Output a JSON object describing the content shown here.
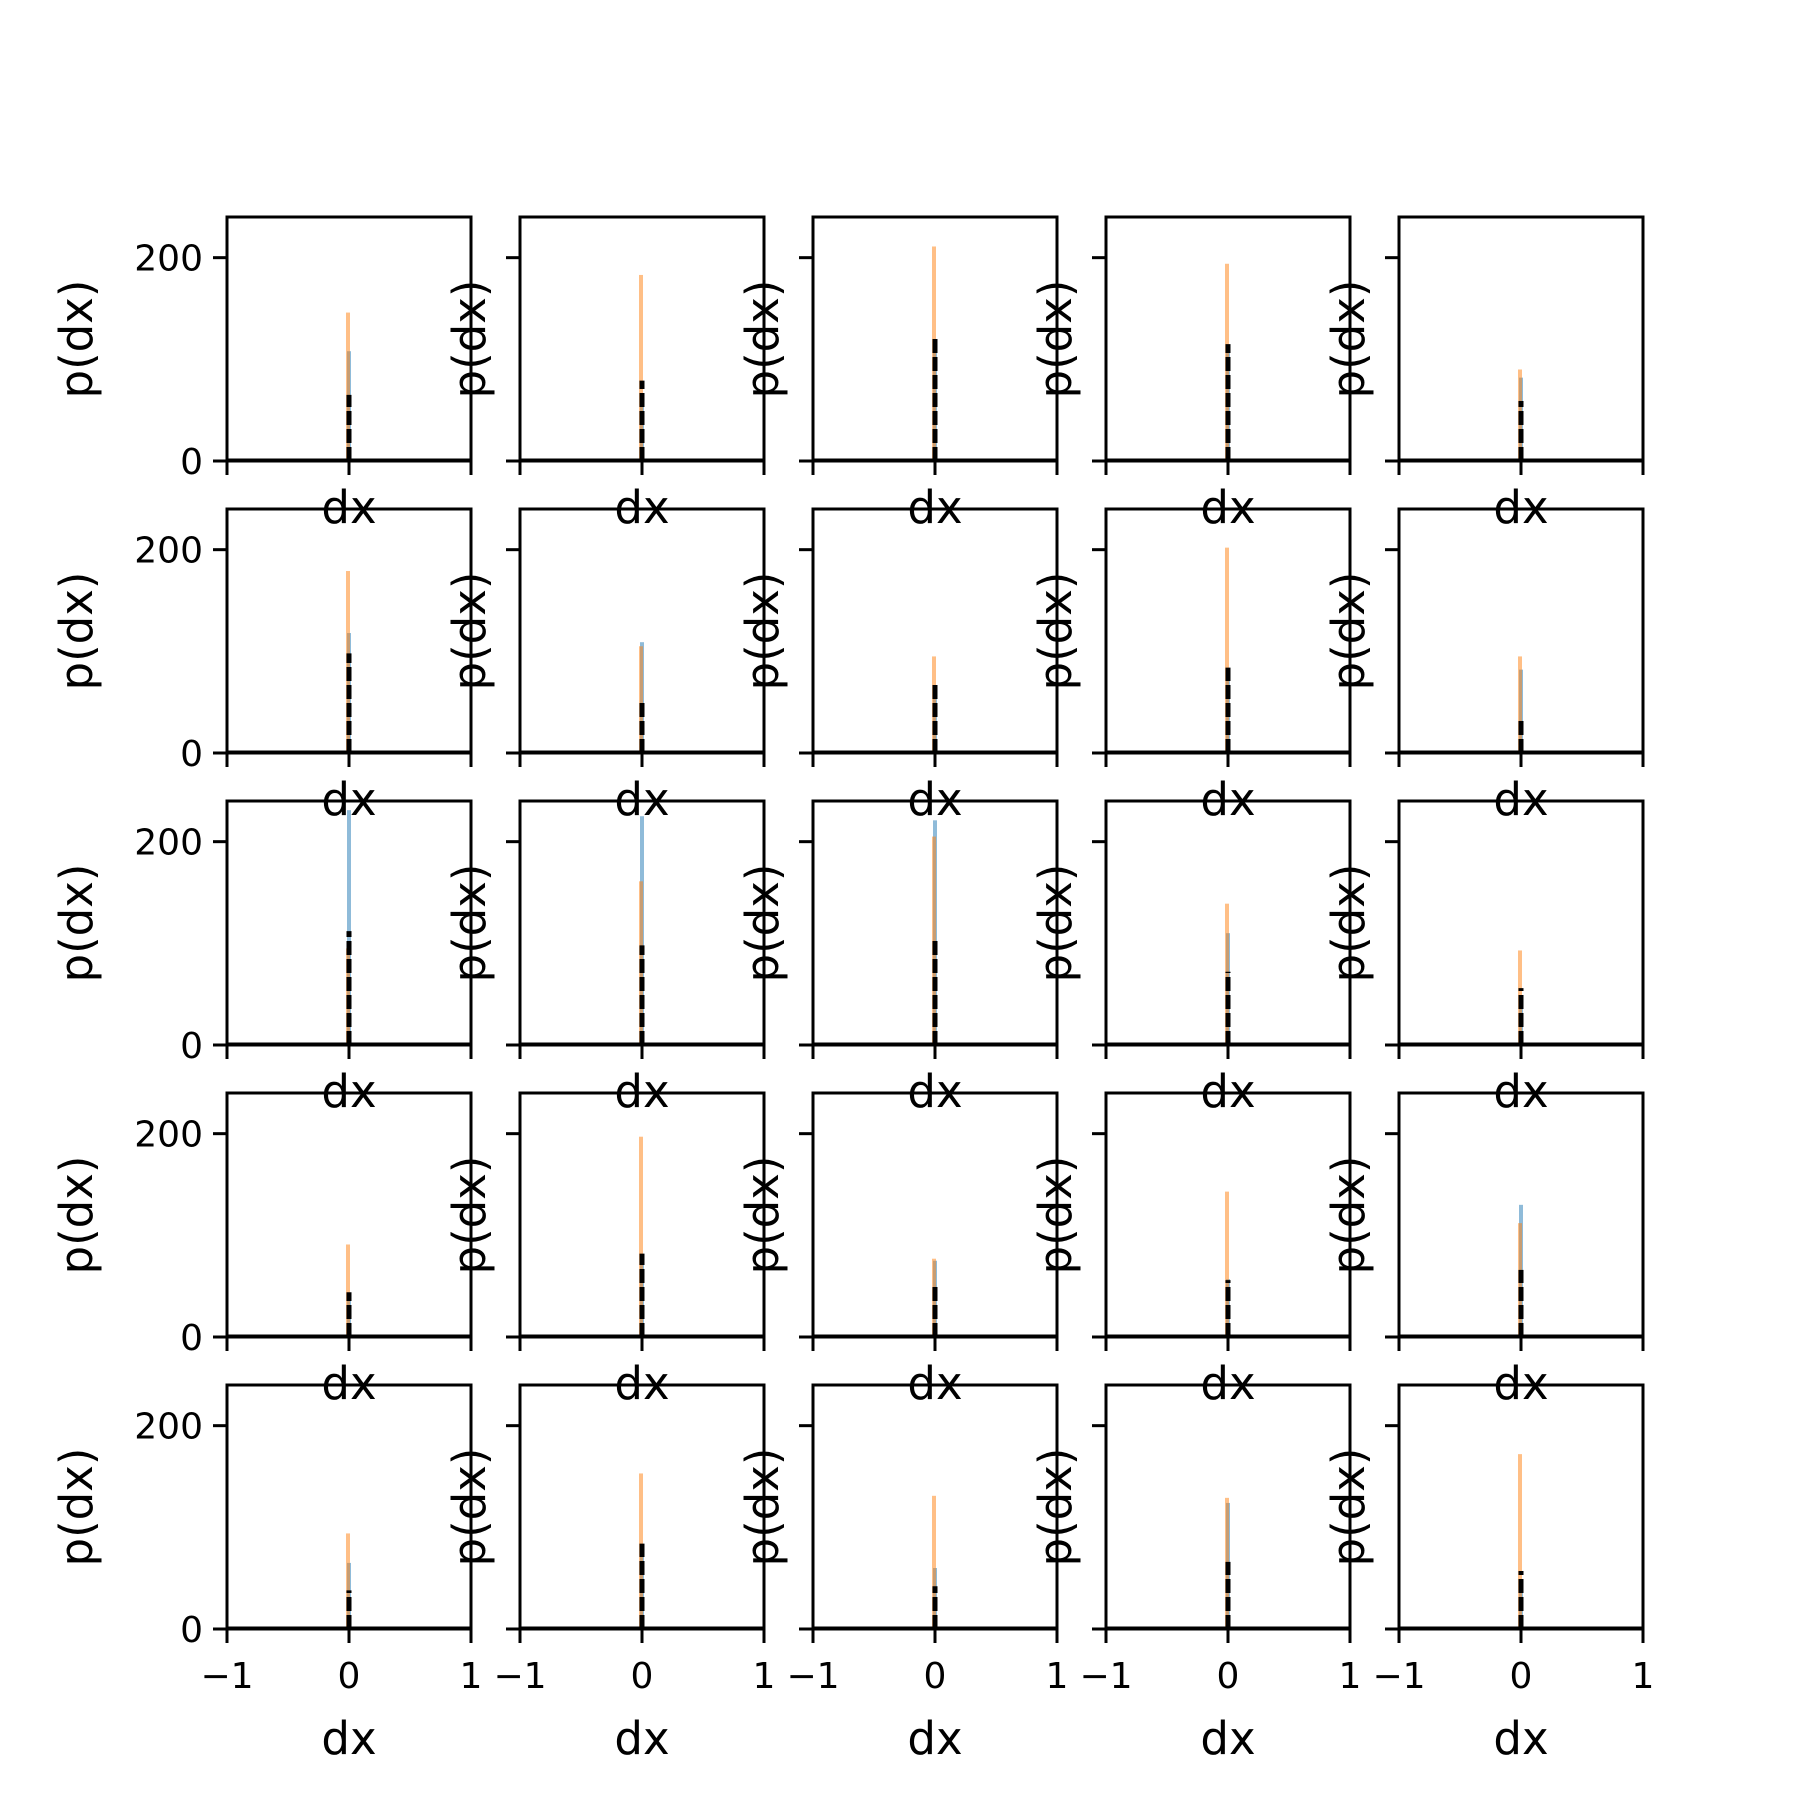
{
  "chart_data": {
    "type": "bar",
    "grid": "5x5",
    "sharey": true,
    "sharex": true,
    "xlabel": "dx",
    "ylabel": "p(dx)",
    "xlim": [
      -1,
      1
    ],
    "ylim": [
      0,
      240
    ],
    "xticks": [
      {
        "v": -1,
        "label": "−1"
      },
      {
        "v": 0,
        "label": "0"
      },
      {
        "v": 1,
        "label": "1"
      }
    ],
    "yticks": [
      {
        "v": 0,
        "label": "0"
      },
      {
        "v": 200,
        "label": "200"
      }
    ],
    "grid_lines": false,
    "colors": {
      "blue": "#1f77b4",
      "orange": "#ff7f0e",
      "black": "#000000"
    },
    "panels": [
      {
        "blue": 108,
        "orange": 146,
        "black": 65
      },
      {
        "blue": 55,
        "orange": 183,
        "black": 79
      },
      {
        "blue": 120,
        "orange": 211,
        "black": 123
      },
      {
        "blue": 110,
        "orange": 194,
        "black": 115
      },
      {
        "blue": 82,
        "orange": 90,
        "black": 59
      },
      {
        "blue": 118,
        "orange": 179,
        "black": 98
      },
      {
        "blue": 109,
        "orange": 105,
        "black": 50
      },
      {
        "blue": 60,
        "orange": 95,
        "black": 68
      },
      {
        "blue": 72,
        "orange": 202,
        "black": 84
      },
      {
        "blue": 82,
        "orange": 95,
        "black": 35
      },
      {
        "blue": 231,
        "orange": 95,
        "black": 112
      },
      {
        "blue": 225,
        "orange": 161,
        "black": 98
      },
      {
        "blue": 221,
        "orange": 205,
        "black": 103
      },
      {
        "blue": 110,
        "orange": 139,
        "black": 72
      },
      {
        "blue": 40,
        "orange": 93,
        "black": 56
      },
      {
        "blue": 40,
        "orange": 91,
        "black": 44
      },
      {
        "blue": 80,
        "orange": 197,
        "black": 82
      },
      {
        "blue": 75,
        "orange": 77,
        "black": 52
      },
      {
        "blue": 57,
        "orange": 143,
        "black": 56
      },
      {
        "blue": 130,
        "orange": 112,
        "black": 66
      },
      {
        "blue": 65,
        "orange": 94,
        "black": 38
      },
      {
        "blue": 83,
        "orange": 153,
        "black": 84
      },
      {
        "blue": 60,
        "orange": 131,
        "black": 42
      },
      {
        "blue": 124,
        "orange": 129,
        "black": 66
      },
      {
        "blue": 42,
        "orange": 172,
        "black": 57
      }
    ]
  }
}
